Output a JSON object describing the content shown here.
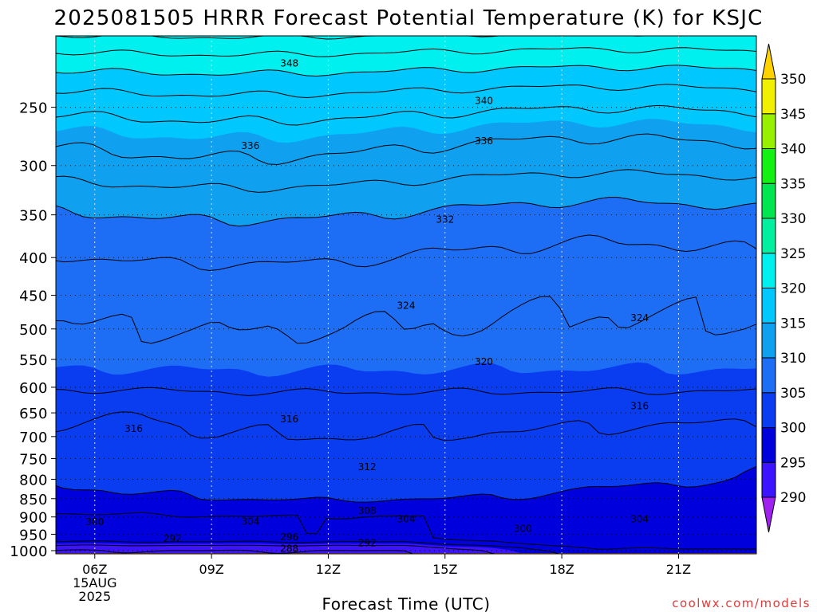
{
  "chart_data": {
    "type": "contour",
    "title": "2025081505 HRRR Forecast Potential Temperature (K) for KSJC",
    "xlabel": "Forecast Time (UTC)",
    "credit": "coolwx.com/models",
    "x_ticks": [
      {
        "hour": 6,
        "label": "06Z",
        "sub": [
          "15AUG",
          "2025"
        ]
      },
      {
        "hour": 9,
        "label": "09Z"
      },
      {
        "hour": 12,
        "label": "12Z"
      },
      {
        "hour": 15,
        "label": "15Z"
      },
      {
        "hour": 18,
        "label": "18Z"
      },
      {
        "hour": 21,
        "label": "21Z"
      }
    ],
    "xlim": [
      5,
      23
    ],
    "y_ticks": [
      250,
      300,
      350,
      400,
      450,
      500,
      550,
      600,
      650,
      700,
      750,
      800,
      850,
      900,
      950,
      1000
    ],
    "ylim_hPa": [
      1010,
      200
    ],
    "surface_pressure_hPa": 1010,
    "colorbar": {
      "levels": [
        290,
        295,
        300,
        305,
        310,
        315,
        320,
        325,
        330,
        335,
        340,
        345,
        350
      ],
      "colors": [
        "#a020f0",
        "#3c14ff",
        "#0000dc",
        "#0a3cf0",
        "#1e6ef5",
        "#0fa0f0",
        "#00c8ff",
        "#00f0f0",
        "#00f0a0",
        "#00e650",
        "#14f014",
        "#96f000",
        "#f0f000",
        "#ffd200"
      ]
    },
    "contour_interval_K": 2,
    "isentropes": [
      {
        "theta": 348,
        "hour": 11,
        "p": 218
      },
      {
        "theta": 340,
        "hour": 16,
        "p": 245
      },
      {
        "theta": 336,
        "hour": 10,
        "p": 282
      },
      {
        "theta": 336,
        "hour": 16,
        "p": 278
      },
      {
        "theta": 332,
        "hour": 15,
        "p": 355
      },
      {
        "theta": 324,
        "hour": 14,
        "p": 465
      },
      {
        "theta": 324,
        "hour": 20,
        "p": 483
      },
      {
        "theta": 320,
        "hour": 16,
        "p": 554
      },
      {
        "theta": 316,
        "hour": 7,
        "p": 683
      },
      {
        "theta": 316,
        "hour": 11,
        "p": 663
      },
      {
        "theta": 316,
        "hour": 20,
        "p": 636
      },
      {
        "theta": 312,
        "hour": 13,
        "p": 770
      },
      {
        "theta": 308,
        "hour": 13,
        "p": 883
      },
      {
        "theta": 304,
        "hour": 10,
        "p": 913
      },
      {
        "theta": 304,
        "hour": 14,
        "p": 906
      },
      {
        "theta": 304,
        "hour": 20,
        "p": 906
      },
      {
        "theta": 300,
        "hour": 6,
        "p": 914
      },
      {
        "theta": 300,
        "hour": 17,
        "p": 934
      },
      {
        "theta": 296,
        "hour": 11,
        "p": 958
      },
      {
        "theta": 292,
        "hour": 8,
        "p": 963
      },
      {
        "theta": 292,
        "hour": 13,
        "p": 976
      },
      {
        "theta": 288,
        "hour": 11,
        "p": 994
      }
    ],
    "grid": "dotted"
  }
}
